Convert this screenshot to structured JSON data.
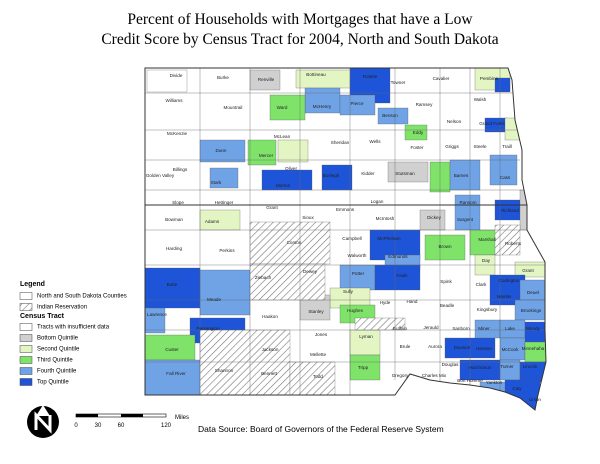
{
  "title": [
    "Percent of Households with Mortgages that have a Low",
    "Credit Score by Census Tract for 2004, North and South Dakota"
  ],
  "legend": {
    "title": "Legend",
    "items": [
      {
        "label": "North and South Dakota Counties",
        "color": "#ffffff"
      },
      {
        "label": "Indian Reservation",
        "color": "hatch"
      }
    ],
    "tract_title": "Census Tract",
    "tract_items": [
      {
        "label": "Tracts with insufficient data",
        "color": "#ffffff"
      },
      {
        "label": "Bottom Quintile",
        "color": "#d0d0d0"
      },
      {
        "label": "Second Quintile",
        "color": "#e4f5c4"
      },
      {
        "label": "Third Quintile",
        "color": "#7fe36a"
      },
      {
        "label": "Fourth Quintile",
        "color": "#6fa3e6"
      },
      {
        "label": "Top Quintile",
        "color": "#1e55d8"
      }
    ]
  },
  "scale": {
    "ticks": [
      "0",
      "30",
      "60",
      "120"
    ],
    "unit": "Miles"
  },
  "source": "Data Source: Board of Governors of the Federal Reserve System",
  "counties": [
    "Divide",
    "Burke",
    "Renville",
    "Bottineau",
    "Rolette",
    "Towner",
    "Cavalier",
    "Pembina",
    "Williams",
    "Mountrail",
    "Ward",
    "McHenry",
    "Pierce",
    "Ramsey",
    "Walsh",
    "Benson",
    "Nelson",
    "Grand Forks",
    "McKenzie",
    "Eddy",
    "Dunn",
    "McLean",
    "Sheridan",
    "Wells",
    "Foster",
    "Griggs",
    "Steele",
    "Traill",
    "Mercer",
    "Oliver",
    "Golden Valley",
    "Billings",
    "Stark",
    "Morton",
    "Burleigh",
    "Kidder",
    "Stutsman",
    "Barnes",
    "Cass",
    "Hettinger",
    "Grant",
    "Logan",
    "Ransom",
    "Slope",
    "Bowman",
    "Adams",
    "Sioux",
    "Emmons",
    "McIntosh",
    "Dickey",
    "Sargent",
    "Richland",
    "Campbell",
    "McPherson",
    "Brown",
    "Marshall",
    "Roberts",
    "Harding",
    "Perkins",
    "Corson",
    "Walworth",
    "Edmunds",
    "Day",
    "Grant",
    "Butte",
    "Ziebach",
    "Dewey",
    "Potter",
    "Faulk",
    "Spink",
    "Clark",
    "Codington",
    "Hamlin",
    "Deuel",
    "Meade",
    "Sully",
    "Hyde",
    "Hand",
    "Beadle",
    "Kingsbury",
    "Brookings",
    "Lawrence",
    "Pennington",
    "Haakon",
    "Stanley",
    "Hughes",
    "Buffalo",
    "Jerauld",
    "Sanborn",
    "Miner",
    "Lake",
    "Moody",
    "Jones",
    "Lyman",
    "Custer",
    "Jackson",
    "Mellette",
    "Brule",
    "Aurora",
    "Davison",
    "Hanson",
    "McCook",
    "Minnehaha",
    "Fall River",
    "Shannon",
    "Bennett",
    "Todd",
    "Tripp",
    "Gregory",
    "Charles Mix",
    "Douglas",
    "Hutchinson",
    "Turner",
    "Lincoln",
    "Bon Homme",
    "Yankton",
    "Clay",
    "Union"
  ]
}
